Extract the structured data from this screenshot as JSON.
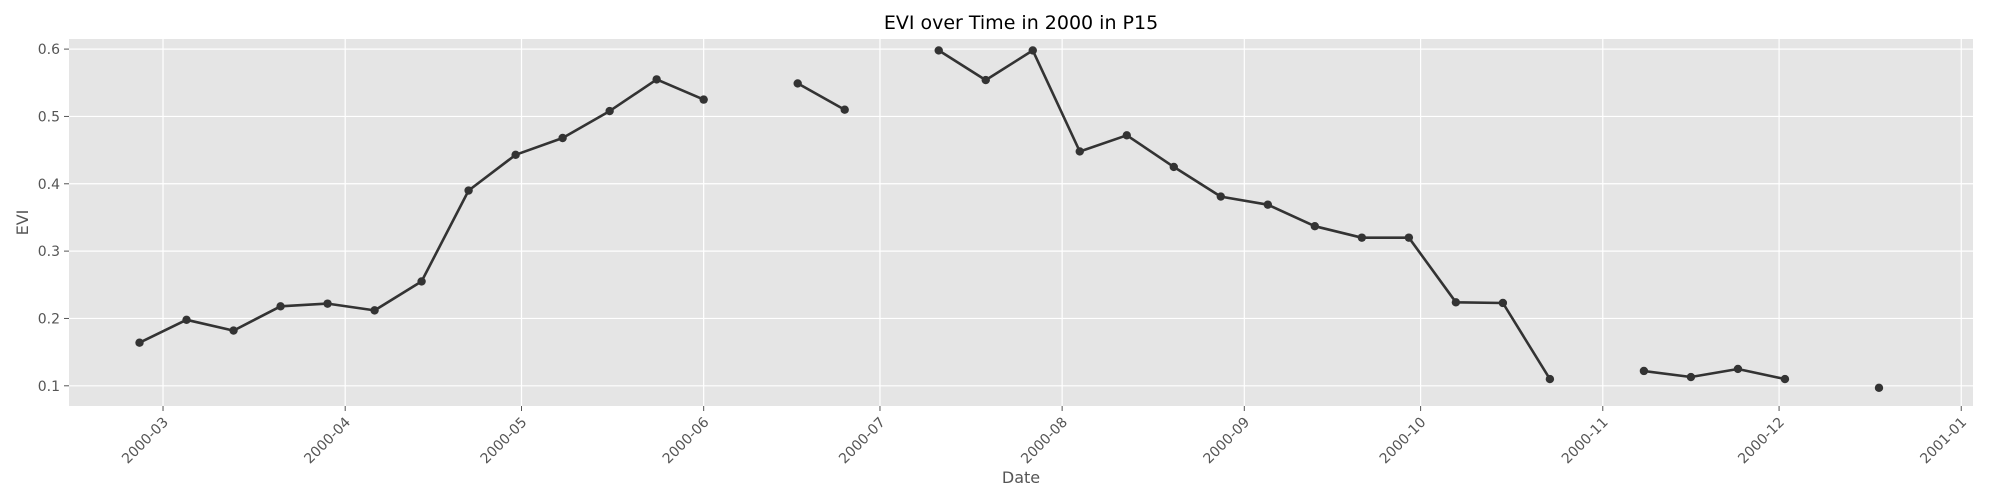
{
  "chart_data": {
    "type": "line",
    "title": "EVI over Time in 2000 in P15",
    "xlabel": "Date",
    "ylabel": "EVI",
    "grid": true,
    "xlim": [
      "2000-02-14",
      "2001-01-03"
    ],
    "ylim": [
      0.07,
      0.615
    ],
    "x_ticks": [
      "2000-03",
      "2000-04",
      "2000-05",
      "2000-06",
      "2000-07",
      "2000-08",
      "2000-09",
      "2000-10",
      "2000-11",
      "2000-12",
      "2001-01"
    ],
    "y_ticks": [
      "0.1",
      "0.2",
      "0.3",
      "0.4",
      "0.5",
      "0.6"
    ],
    "line_color": "#333333",
    "background_color": "#e5e5e5",
    "series": [
      {
        "points": [
          {
            "x": "2000-02-26",
            "y": 0.164
          },
          {
            "x": "2000-03-05",
            "y": 0.198
          },
          {
            "x": "2000-03-13",
            "y": 0.182
          },
          {
            "x": "2000-03-21",
            "y": 0.218
          },
          {
            "x": "2000-03-29",
            "y": 0.222
          },
          {
            "x": "2000-04-06",
            "y": 0.212
          },
          {
            "x": "2000-04-14",
            "y": 0.255
          },
          {
            "x": "2000-04-22",
            "y": 0.39
          },
          {
            "x": "2000-04-30",
            "y": 0.443
          },
          {
            "x": "2000-05-08",
            "y": 0.468
          },
          {
            "x": "2000-05-16",
            "y": 0.508
          },
          {
            "x": "2000-05-24",
            "y": 0.555
          },
          {
            "x": "2000-06-01",
            "y": 0.525
          },
          {
            "x": "2000-06-09",
            "y": null
          },
          {
            "x": "2000-06-17",
            "y": 0.549
          },
          {
            "x": "2000-06-25",
            "y": 0.51
          },
          {
            "x": "2000-07-03",
            "y": null
          },
          {
            "x": "2000-07-11",
            "y": 0.598
          },
          {
            "x": "2000-07-19",
            "y": 0.554
          },
          {
            "x": "2000-07-27",
            "y": 0.598
          },
          {
            "x": "2000-08-04",
            "y": 0.448
          },
          {
            "x": "2000-08-12",
            "y": 0.472
          },
          {
            "x": "2000-08-20",
            "y": 0.425
          },
          {
            "x": "2000-08-28",
            "y": 0.381
          },
          {
            "x": "2000-09-05",
            "y": 0.369
          },
          {
            "x": "2000-09-13",
            "y": 0.337
          },
          {
            "x": "2000-09-21",
            "y": 0.32
          },
          {
            "x": "2000-09-29",
            "y": 0.32
          },
          {
            "x": "2000-10-07",
            "y": 0.224
          },
          {
            "x": "2000-10-15",
            "y": 0.223
          },
          {
            "x": "2000-10-23",
            "y": 0.11
          },
          {
            "x": "2000-10-31",
            "y": null
          },
          {
            "x": "2000-11-08",
            "y": 0.122
          },
          {
            "x": "2000-11-16",
            "y": 0.113
          },
          {
            "x": "2000-11-24",
            "y": 0.125
          },
          {
            "x": "2000-12-02",
            "y": 0.11
          },
          {
            "x": "2000-12-10",
            "y": null
          },
          {
            "x": "2000-12-18",
            "y": 0.097
          }
        ]
      }
    ]
  }
}
